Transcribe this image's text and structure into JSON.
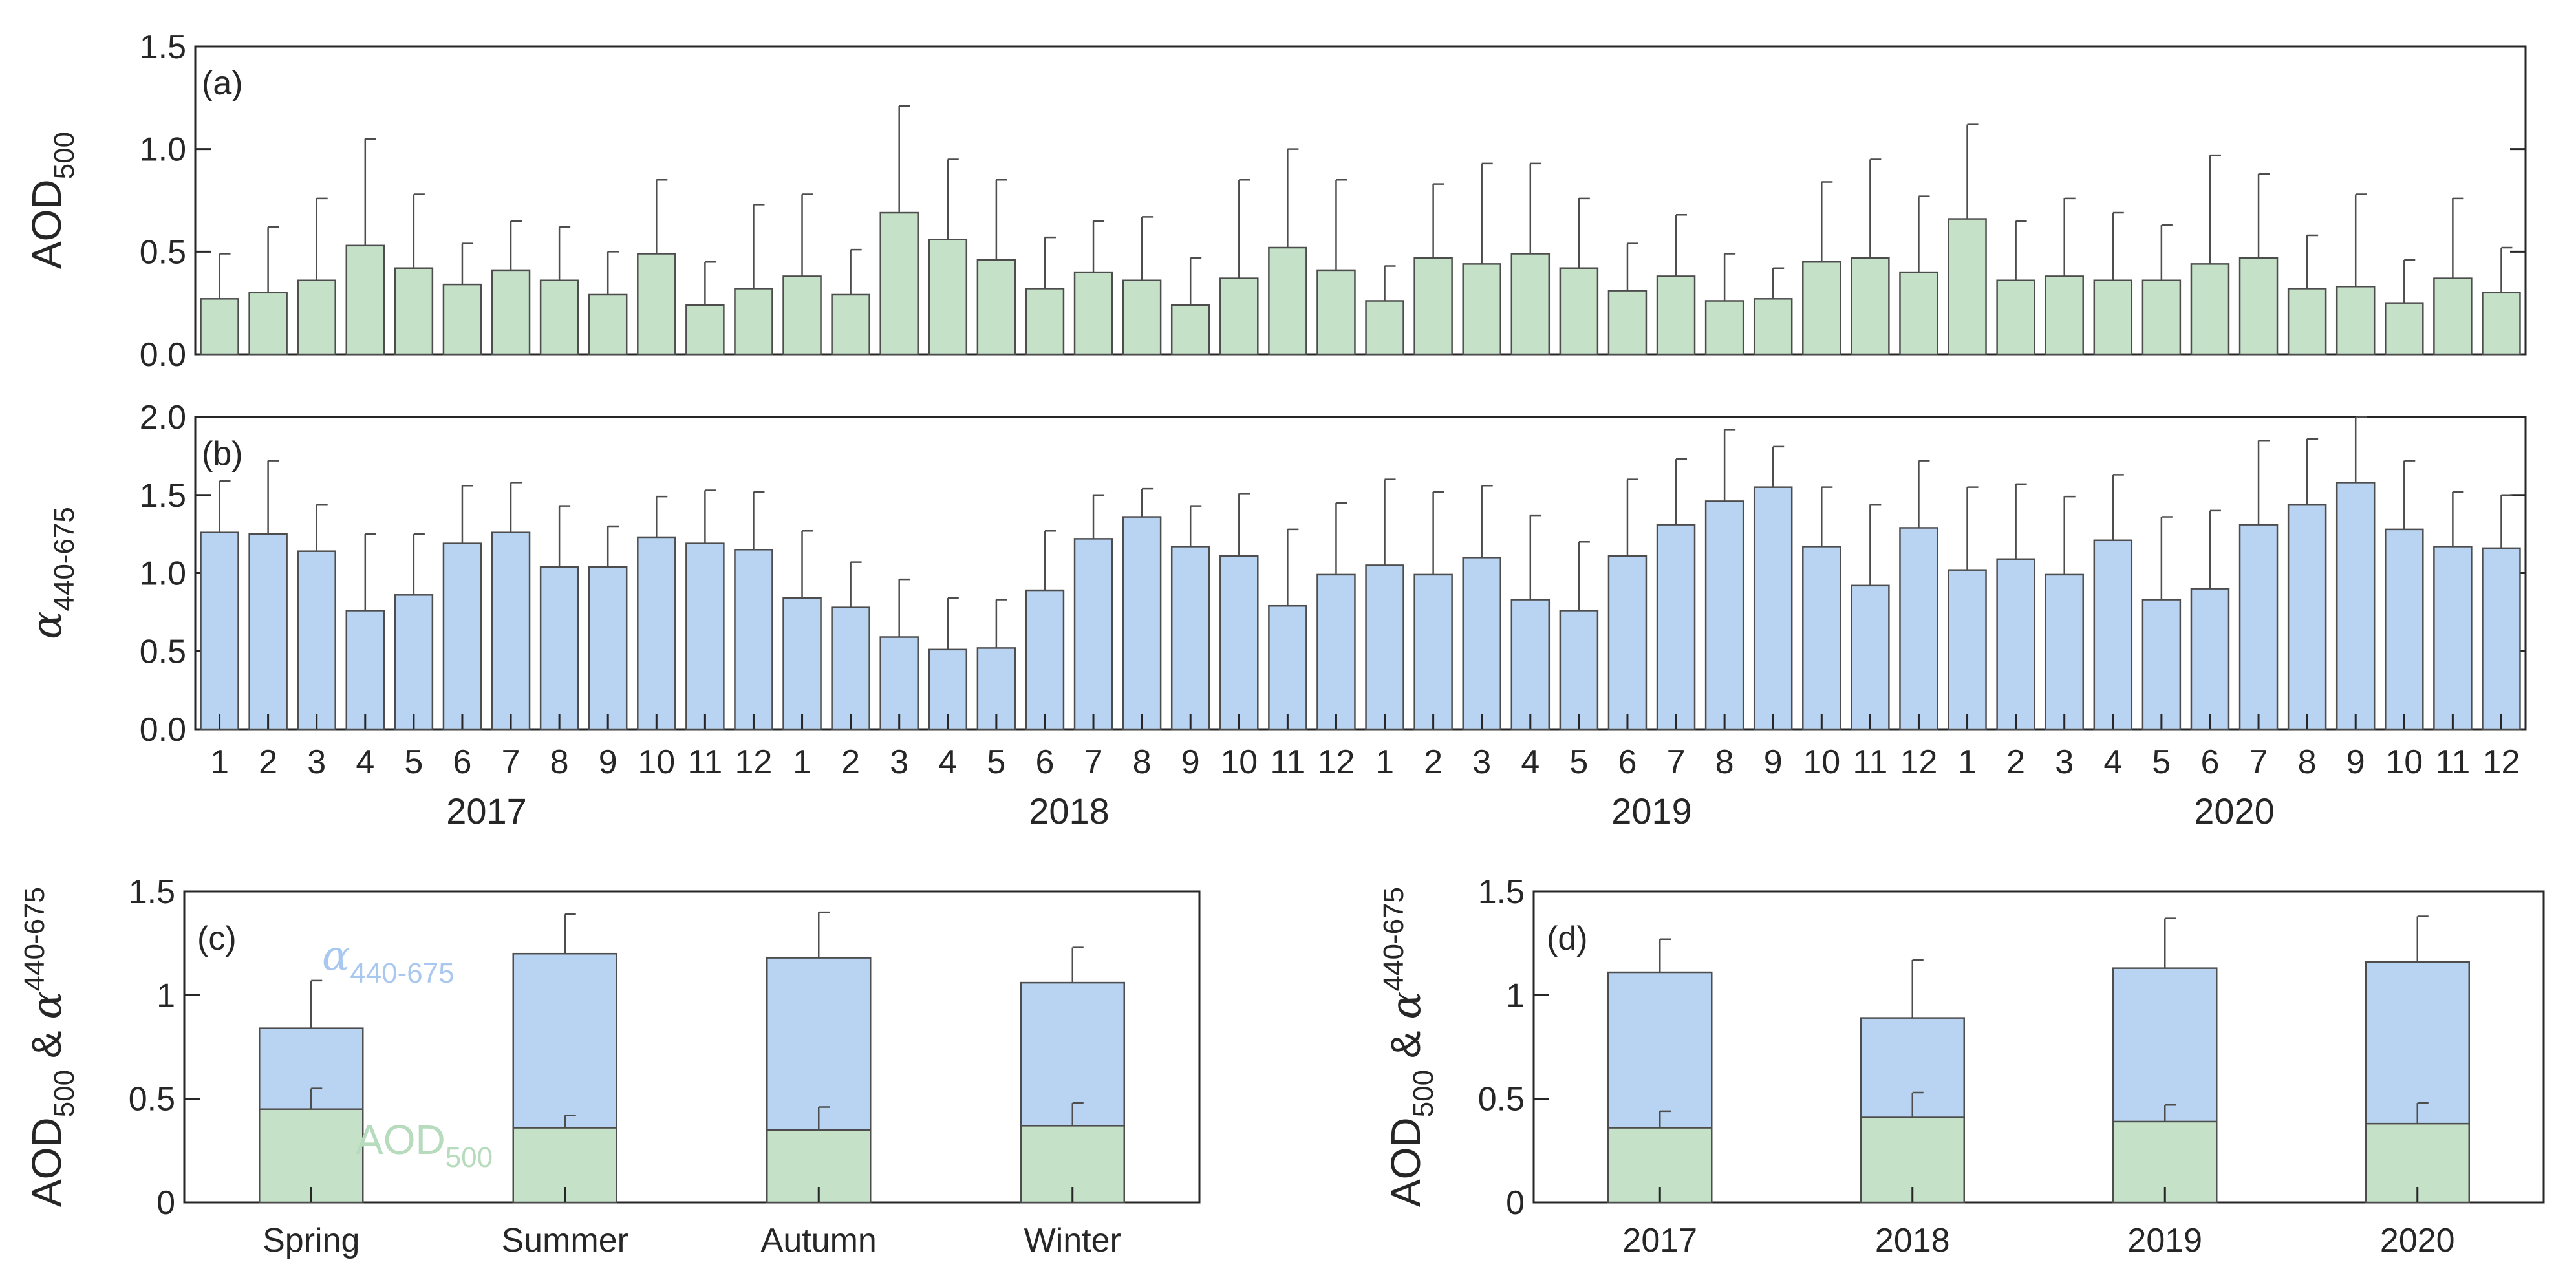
{
  "colors": {
    "aod_fill": "#c5e2c9",
    "alpha_fill": "#b9d4f2",
    "bar_stroke": "#4d4d4d",
    "axis": "#262626",
    "legend_alpha_text": "#a9c8ef",
    "legend_aod_text": "#b6dbbd"
  },
  "chart_data": [
    {
      "id": "a",
      "type": "bar",
      "panel_label": "(a)",
      "title": "",
      "ylabel": "AOD",
      "ylabel_sub": "500",
      "ylim": [
        0,
        1.5
      ],
      "yticks": [
        0,
        0.5,
        1.0,
        1.5
      ],
      "ytick_labels": [
        "0.0",
        "0.5",
        "1.0",
        "1.5"
      ],
      "categories": [
        "1",
        "2",
        "3",
        "4",
        "5",
        "6",
        "7",
        "8",
        "9",
        "10",
        "11",
        "12",
        "1",
        "2",
        "3",
        "4",
        "5",
        "6",
        "7",
        "8",
        "9",
        "10",
        "11",
        "12",
        "1",
        "2",
        "3",
        "4",
        "5",
        "6",
        "7",
        "8",
        "9",
        "10",
        "11",
        "12",
        "1",
        "2",
        "3",
        "4",
        "5",
        "6",
        "7",
        "8",
        "9",
        "10",
        "11",
        "12"
      ],
      "values": [
        0.27,
        0.3,
        0.36,
        0.53,
        0.42,
        0.34,
        0.41,
        0.36,
        0.29,
        0.49,
        0.24,
        0.32,
        0.38,
        0.29,
        0.69,
        0.56,
        0.46,
        0.32,
        0.4,
        0.36,
        0.24,
        0.37,
        0.52,
        0.41,
        0.26,
        0.47,
        0.44,
        0.49,
        0.42,
        0.31,
        0.38,
        0.26,
        0.27,
        0.45,
        0.47,
        0.4,
        0.66,
        0.36,
        0.38,
        0.36,
        0.36,
        0.44,
        0.47,
        0.32,
        0.33,
        0.25,
        0.37,
        0.3
      ],
      "errors": [
        0.22,
        0.32,
        0.4,
        0.52,
        0.36,
        0.2,
        0.24,
        0.26,
        0.21,
        0.36,
        0.21,
        0.41,
        0.4,
        0.22,
        0.52,
        0.39,
        0.39,
        0.25,
        0.25,
        0.31,
        0.23,
        0.48,
        0.48,
        0.44,
        0.17,
        0.36,
        0.49,
        0.44,
        0.34,
        0.23,
        0.3,
        0.23,
        0.15,
        0.39,
        0.48,
        0.37,
        0.46,
        0.29,
        0.38,
        0.33,
        0.27,
        0.53,
        0.41,
        0.26,
        0.45,
        0.21,
        0.39,
        0.22
      ]
    },
    {
      "id": "b",
      "type": "bar",
      "panel_label": "(b)",
      "title": "",
      "ylabel": "α",
      "ylabel_sub": "440-675",
      "ylim": [
        0,
        2.0
      ],
      "yticks": [
        0,
        0.5,
        1.0,
        1.5,
        2.0
      ],
      "ytick_labels": [
        "0.0",
        "0.5",
        "1.0",
        "1.5",
        "2.0"
      ],
      "xlabel_groups": [
        "2017",
        "2018",
        "2019",
        "2020"
      ],
      "categories": [
        "1",
        "2",
        "3",
        "4",
        "5",
        "6",
        "7",
        "8",
        "9",
        "10",
        "11",
        "12",
        "1",
        "2",
        "3",
        "4",
        "5",
        "6",
        "7",
        "8",
        "9",
        "10",
        "11",
        "12",
        "1",
        "2",
        "3",
        "4",
        "5",
        "6",
        "7",
        "8",
        "9",
        "10",
        "11",
        "12",
        "1",
        "2",
        "3",
        "4",
        "5",
        "6",
        "7",
        "8",
        "9",
        "10",
        "11",
        "12"
      ],
      "values": [
        1.26,
        1.25,
        1.14,
        0.76,
        0.86,
        1.19,
        1.26,
        1.04,
        1.04,
        1.23,
        1.19,
        1.15,
        0.84,
        0.78,
        0.59,
        0.51,
        0.52,
        0.89,
        1.22,
        1.36,
        1.17,
        1.11,
        0.79,
        0.99,
        1.05,
        0.99,
        1.1,
        0.83,
        0.76,
        1.11,
        1.31,
        1.46,
        1.55,
        1.17,
        0.92,
        1.29,
        1.02,
        1.09,
        0.99,
        1.21,
        0.83,
        0.9,
        1.31,
        1.44,
        1.58,
        1.28,
        1.17,
        1.16
      ],
      "errors": [
        0.33,
        0.47,
        0.3,
        0.49,
        0.39,
        0.37,
        0.32,
        0.39,
        0.26,
        0.26,
        0.34,
        0.37,
        0.43,
        0.29,
        0.37,
        0.33,
        0.31,
        0.38,
        0.28,
        0.18,
        0.26,
        0.4,
        0.49,
        0.46,
        0.55,
        0.53,
        0.46,
        0.54,
        0.44,
        0.49,
        0.42,
        0.46,
        0.26,
        0.38,
        0.52,
        0.43,
        0.53,
        0.48,
        0.5,
        0.42,
        0.53,
        0.5,
        0.54,
        0.42,
        0.42,
        0.44,
        0.35,
        0.34
      ]
    },
    {
      "id": "c",
      "type": "bar",
      "stacked_overlay": true,
      "panel_label": "(c)",
      "title": "",
      "ylabel": "AOD",
      "ylabel_sub": "500",
      "ylabel_amp": " & ",
      "ylabel2": "α",
      "ylabel2_sub": "440-675",
      "ylim": [
        0,
        1.5
      ],
      "yticks": [
        0,
        0.5,
        1,
        1.5
      ],
      "ytick_labels": [
        "0",
        "0.5",
        "1",
        "1.5"
      ],
      "categories": [
        "Spring",
        "Summer",
        "Autumn",
        "Winter"
      ],
      "series": [
        {
          "name": "α440-675",
          "values": [
            0.84,
            1.2,
            1.18,
            1.06
          ],
          "errors": [
            0.23,
            0.19,
            0.22,
            0.17
          ]
        },
        {
          "name": "AOD500",
          "values": [
            0.45,
            0.36,
            0.35,
            0.37
          ],
          "errors": [
            0.1,
            0.06,
            0.11,
            0.11
          ]
        }
      ],
      "annotations": [
        {
          "text": "α",
          "sub": "440-675",
          "series": "alpha"
        },
        {
          "text": "AOD",
          "sub": "500",
          "series": "aod"
        }
      ]
    },
    {
      "id": "d",
      "type": "bar",
      "stacked_overlay": true,
      "panel_label": "(d)",
      "title": "",
      "ylabel": "AOD",
      "ylabel_sub": "500",
      "ylabel_amp": " & ",
      "ylabel2": "α",
      "ylabel2_sub": "440-675",
      "ylim": [
        0,
        1.5
      ],
      "yticks": [
        0,
        0.5,
        1,
        1.5
      ],
      "ytick_labels": [
        "0",
        "0.5",
        "1",
        "1.5"
      ],
      "categories": [
        "2017",
        "2018",
        "2019",
        "2020"
      ],
      "series": [
        {
          "name": "α440-675",
          "values": [
            1.11,
            0.89,
            1.13,
            1.16
          ],
          "errors": [
            0.16,
            0.28,
            0.24,
            0.22
          ]
        },
        {
          "name": "AOD500",
          "values": [
            0.36,
            0.41,
            0.39,
            0.38
          ],
          "errors": [
            0.08,
            0.12,
            0.08,
            0.1
          ]
        }
      ]
    }
  ]
}
